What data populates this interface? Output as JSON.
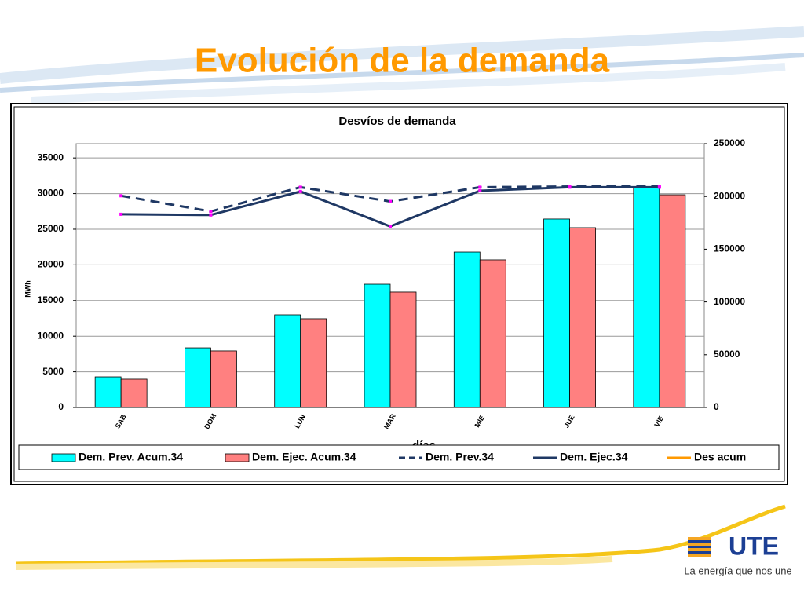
{
  "header": {
    "title": "Evolución de la demanda"
  },
  "chart_data": {
    "type": "bar",
    "title": "Desvíos de demanda",
    "ylabel": "MWh",
    "xlabel": "días",
    "categories": [
      "SAB",
      "DOM",
      "LUN",
      "MAR",
      "MIE",
      "JUE",
      "VIE"
    ],
    "ylim": [
      0,
      37000
    ],
    "yticks": [
      0,
      5000,
      10000,
      15000,
      20000,
      25000,
      30000,
      35000
    ],
    "y2lim": [
      0,
      250000
    ],
    "y2ticks": [
      0,
      50000,
      100000,
      150000,
      200000,
      250000
    ],
    "grid": true,
    "legend": "bottom",
    "series": [
      {
        "name": "Dem. Prev. Acum.34",
        "type": "bar",
        "axis": "y2",
        "color": "#00ffff",
        "values": [
          29000,
          56500,
          87800,
          116800,
          147300,
          178600,
          209100
        ]
      },
      {
        "name": "Dem. Ejec. Acum.34",
        "type": "bar",
        "axis": "y2",
        "color": "#ff8080",
        "values": [
          26800,
          53600,
          84100,
          109400,
          139900,
          170400,
          201600
        ]
      },
      {
        "name": "Dem. Prev.34",
        "type": "line",
        "dash": true,
        "color": "#1f3864",
        "marker_color": "#ff00ff",
        "values": [
          29700,
          27500,
          30900,
          28900,
          30900,
          31000,
          31000
        ]
      },
      {
        "name": "Dem. Ejec.34",
        "type": "line",
        "dash": false,
        "color": "#1f3864",
        "marker_color": "#ff00ff",
        "values": [
          27100,
          27000,
          30300,
          25400,
          30400,
          30900,
          30900
        ]
      },
      {
        "name": "Des acum",
        "type": "line",
        "dash": false,
        "color": "#ff9900",
        "values": [
          null,
          null,
          null,
          null,
          null,
          null,
          null
        ]
      }
    ]
  },
  "logo": {
    "text": "UTE",
    "tagline": "La energía que nos une"
  }
}
